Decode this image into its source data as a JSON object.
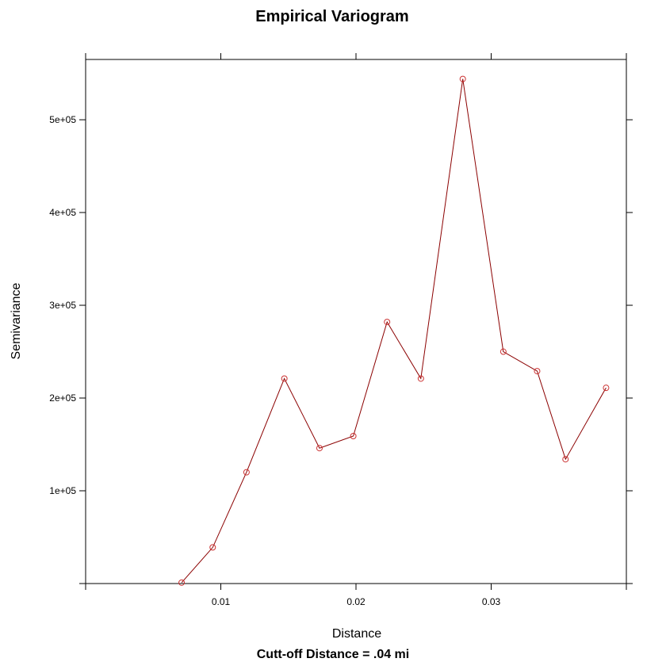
{
  "chart_data": {
    "type": "line",
    "title": "Empirical Variogram",
    "xlabel": "Distance",
    "ylabel": "Semivariance",
    "subtitle": "Cutt-off Distance = .04 mi",
    "x_ticks": [
      "0.01",
      "0.02",
      "0.03"
    ],
    "x_tick_values": [
      0.01,
      0.02,
      0.03
    ],
    "y_ticks": [
      "1e+05",
      "2e+05",
      "3e+05",
      "4e+05",
      "5e+05"
    ],
    "y_tick_values": [
      100000,
      200000,
      300000,
      400000,
      500000
    ],
    "xlim": [
      0.0,
      0.04
    ],
    "ylim": [
      0,
      565000
    ],
    "grid": false,
    "line_color": "#8b0000",
    "marker_color": "#cc3333",
    "series": [
      {
        "x": [
          0.0071,
          0.0094,
          0.0119,
          0.0147,
          0.0173,
          0.0198,
          0.0223,
          0.0248,
          0.0279,
          0.0309,
          0.0334,
          0.0355,
          0.0385
        ],
        "y": [
          1000,
          39000,
          120000,
          221000,
          146000,
          159000,
          282000,
          221000,
          544000,
          250000,
          229000,
          134000,
          211000
        ]
      }
    ]
  }
}
